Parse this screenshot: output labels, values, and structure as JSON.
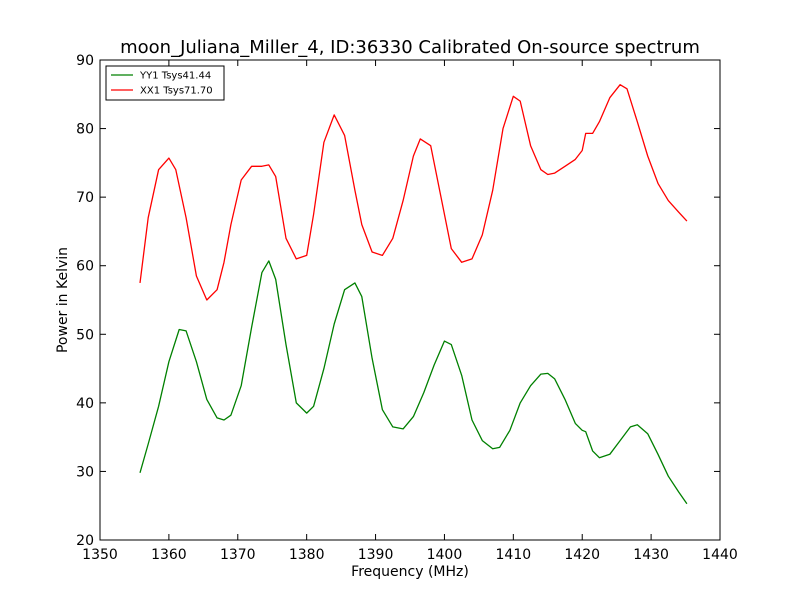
{
  "chart_data": {
    "type": "line",
    "title": "moon_Juliana_Miller_4, ID:36330 Calibrated On-source spectrum",
    "xlabel": "Frequency (MHz)",
    "ylabel": "Power in Kelvin",
    "xlim": [
      1350,
      1440
    ],
    "ylim": [
      20,
      90
    ],
    "xticks": [
      1350,
      1360,
      1370,
      1380,
      1390,
      1400,
      1410,
      1420,
      1430,
      1440
    ],
    "yticks": [
      20,
      30,
      40,
      50,
      60,
      70,
      80,
      90
    ],
    "grid": false,
    "legend_position": "top-left",
    "series": [
      {
        "name": "YY1 Tsys41.44",
        "color": "#008000",
        "x": [
          1355.8,
          1357,
          1358.5,
          1360,
          1361.5,
          1362.5,
          1364,
          1365.5,
          1367,
          1368,
          1369,
          1370.5,
          1372,
          1373.5,
          1374.5,
          1375.5,
          1377,
          1378.5,
          1380,
          1381,
          1382.5,
          1384,
          1385.5,
          1387,
          1388,
          1389.5,
          1391,
          1392.5,
          1394,
          1395.5,
          1397,
          1398.5,
          1400,
          1401,
          1402.5,
          1404,
          1405.5,
          1407,
          1408,
          1409.5,
          1411,
          1412.5,
          1414,
          1415,
          1416,
          1417.5,
          1419,
          1420,
          1420.5,
          1421.5,
          1422.5,
          1424,
          1425.5,
          1427,
          1428,
          1429.5,
          1431,
          1432.5,
          1434,
          1435.2
        ],
        "values": [
          29.8,
          34,
          39.5,
          46,
          50.7,
          50.5,
          46,
          40.5,
          37.8,
          37.5,
          38.2,
          42.5,
          51,
          59,
          60.7,
          58,
          48.5,
          40,
          38.5,
          39.5,
          45,
          51.5,
          56.5,
          57.5,
          55.5,
          46.5,
          39,
          36.5,
          36.2,
          38,
          41.5,
          45.5,
          49,
          48.5,
          44,
          37.5,
          34.5,
          33.3,
          33.5,
          36,
          40,
          42.5,
          44.2,
          44.3,
          43.5,
          40.5,
          37,
          36,
          35.8,
          33,
          32,
          32.5,
          34.5,
          36.5,
          36.8,
          35.5,
          32.5,
          29.3,
          27,
          25.3
        ]
      },
      {
        "name": "XX1 Tsys71.70",
        "color": "#ff0000",
        "x": [
          1355.8,
          1357,
          1358.5,
          1360,
          1361,
          1362.5,
          1364,
          1365.5,
          1367,
          1368,
          1369,
          1370.5,
          1372,
          1373.5,
          1374.5,
          1375.5,
          1377,
          1378.5,
          1380,
          1381,
          1382.5,
          1384,
          1385.5,
          1387,
          1388,
          1389.5,
          1391,
          1392.5,
          1394,
          1395.5,
          1396.5,
          1398,
          1399.5,
          1401,
          1402.5,
          1404,
          1405.5,
          1407,
          1408.5,
          1410,
          1411,
          1412.5,
          1414,
          1415,
          1416,
          1417.5,
          1419,
          1420,
          1420.5,
          1421.5,
          1422.5,
          1424,
          1425.5,
          1426.5,
          1428,
          1429.5,
          1431,
          1432.5,
          1434,
          1435.2
        ],
        "values": [
          57.5,
          67,
          74,
          75.7,
          74,
          67,
          58.5,
          55,
          56.5,
          60.5,
          66,
          72.5,
          74.5,
          74.5,
          74.7,
          73,
          64,
          61,
          61.5,
          67.5,
          78,
          82,
          79,
          71,
          66,
          62,
          61.5,
          64,
          69.5,
          76,
          78.5,
          77.5,
          70,
          62.5,
          60.5,
          61,
          64.5,
          71,
          80,
          84.7,
          84,
          77.5,
          74,
          73.3,
          73.5,
          74.5,
          75.5,
          76.8,
          79.3,
          79.3,
          81,
          84.5,
          86.4,
          85.8,
          81,
          76,
          72,
          69.5,
          67.8,
          66.5
        ]
      }
    ]
  }
}
